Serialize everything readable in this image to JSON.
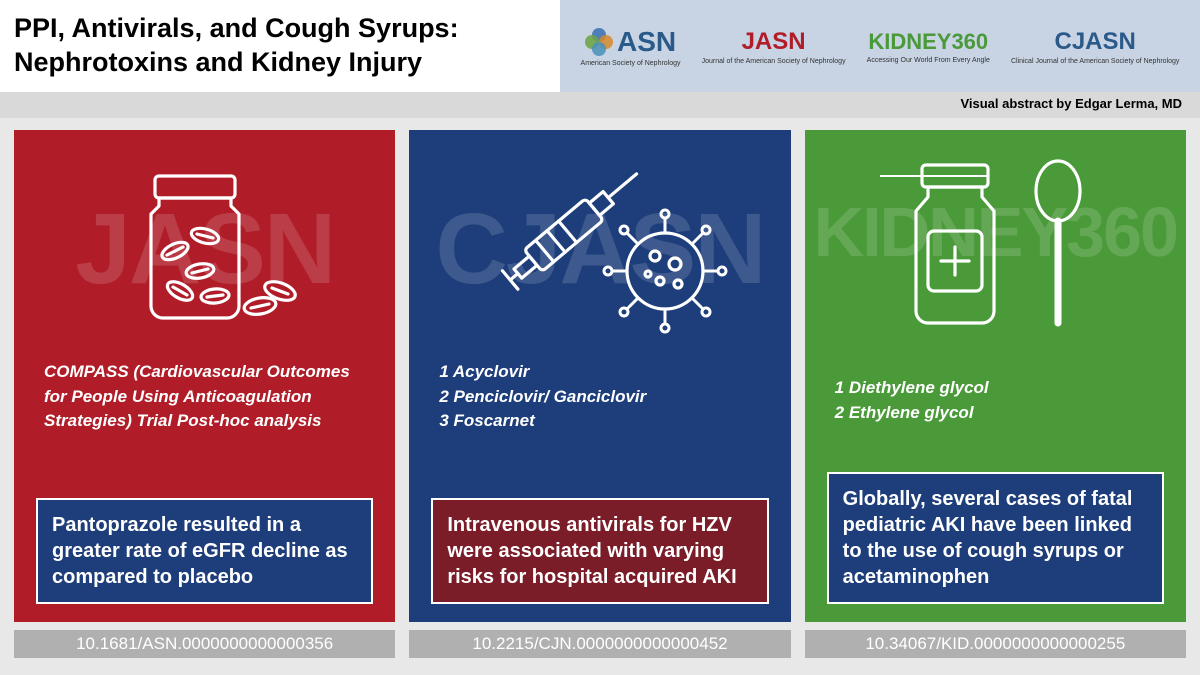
{
  "title_line1": "PPI, Antivirals, and Cough Syrups:",
  "title_line2": "Nephrotoxins and Kidney Injury",
  "credit": "Visual abstract by Edgar Lerma, MD",
  "logos": {
    "asn": {
      "main": "ASN",
      "sub": "American Society of Nephrology",
      "color": "#2a5a8a"
    },
    "jasn": {
      "main": "JASN",
      "sub": "Journal of the American Society of Nephrology",
      "color": "#b01d28"
    },
    "k360": {
      "main": "KIDNEY360",
      "sub": "Accessing Our World From Every Angle",
      "color": "#4a9a3a"
    },
    "cjasn": {
      "main": "CJASN",
      "sub": "Clinical Journal of the American Society of Nephrology",
      "color": "#2a5a8a"
    }
  },
  "panels": [
    {
      "bg": "#b01d28",
      "watermark": "JASN",
      "watermark_color": "#ffffff",
      "points_html": "COMPASS (Cardiovascular Outcomes for People Using Anticoagulation Strategies) Trial Post-hoc analysis",
      "box_bg": "#1d3e7a",
      "box_text": "Pantoprazole resulted in a greater rate of eGFR decline as compared to placebo",
      "doi": "10.1681/ASN.0000000000000356",
      "icon": "pills"
    },
    {
      "bg": "#1d3e7a",
      "watermark": "CJASN",
      "watermark_color": "#ffffff",
      "points_html": "1 Acyclovir<br>2 Penciclovir/ Ganciclovir<br>3 Foscarnet",
      "box_bg": "#7a1d28",
      "box_text": "Intravenous antivirals for HZV were associated with varying risks for hospital acquired AKI",
      "doi": "10.2215/CJN.0000000000000452",
      "icon": "syringe"
    },
    {
      "bg": "#4a9a3a",
      "watermark": "KIDNEY360",
      "watermark_color": "#ffffff",
      "points_html": "1 Diethylene glycol<br>2 Ethylene glycol",
      "box_bg": "#1d3e7a",
      "box_text": "Globally, several cases of fatal pediatric AKI have been linked to the use of cough syrups or acetaminophen",
      "doi": "10.34067/KID.0000000000000255",
      "icon": "bottle"
    }
  ]
}
